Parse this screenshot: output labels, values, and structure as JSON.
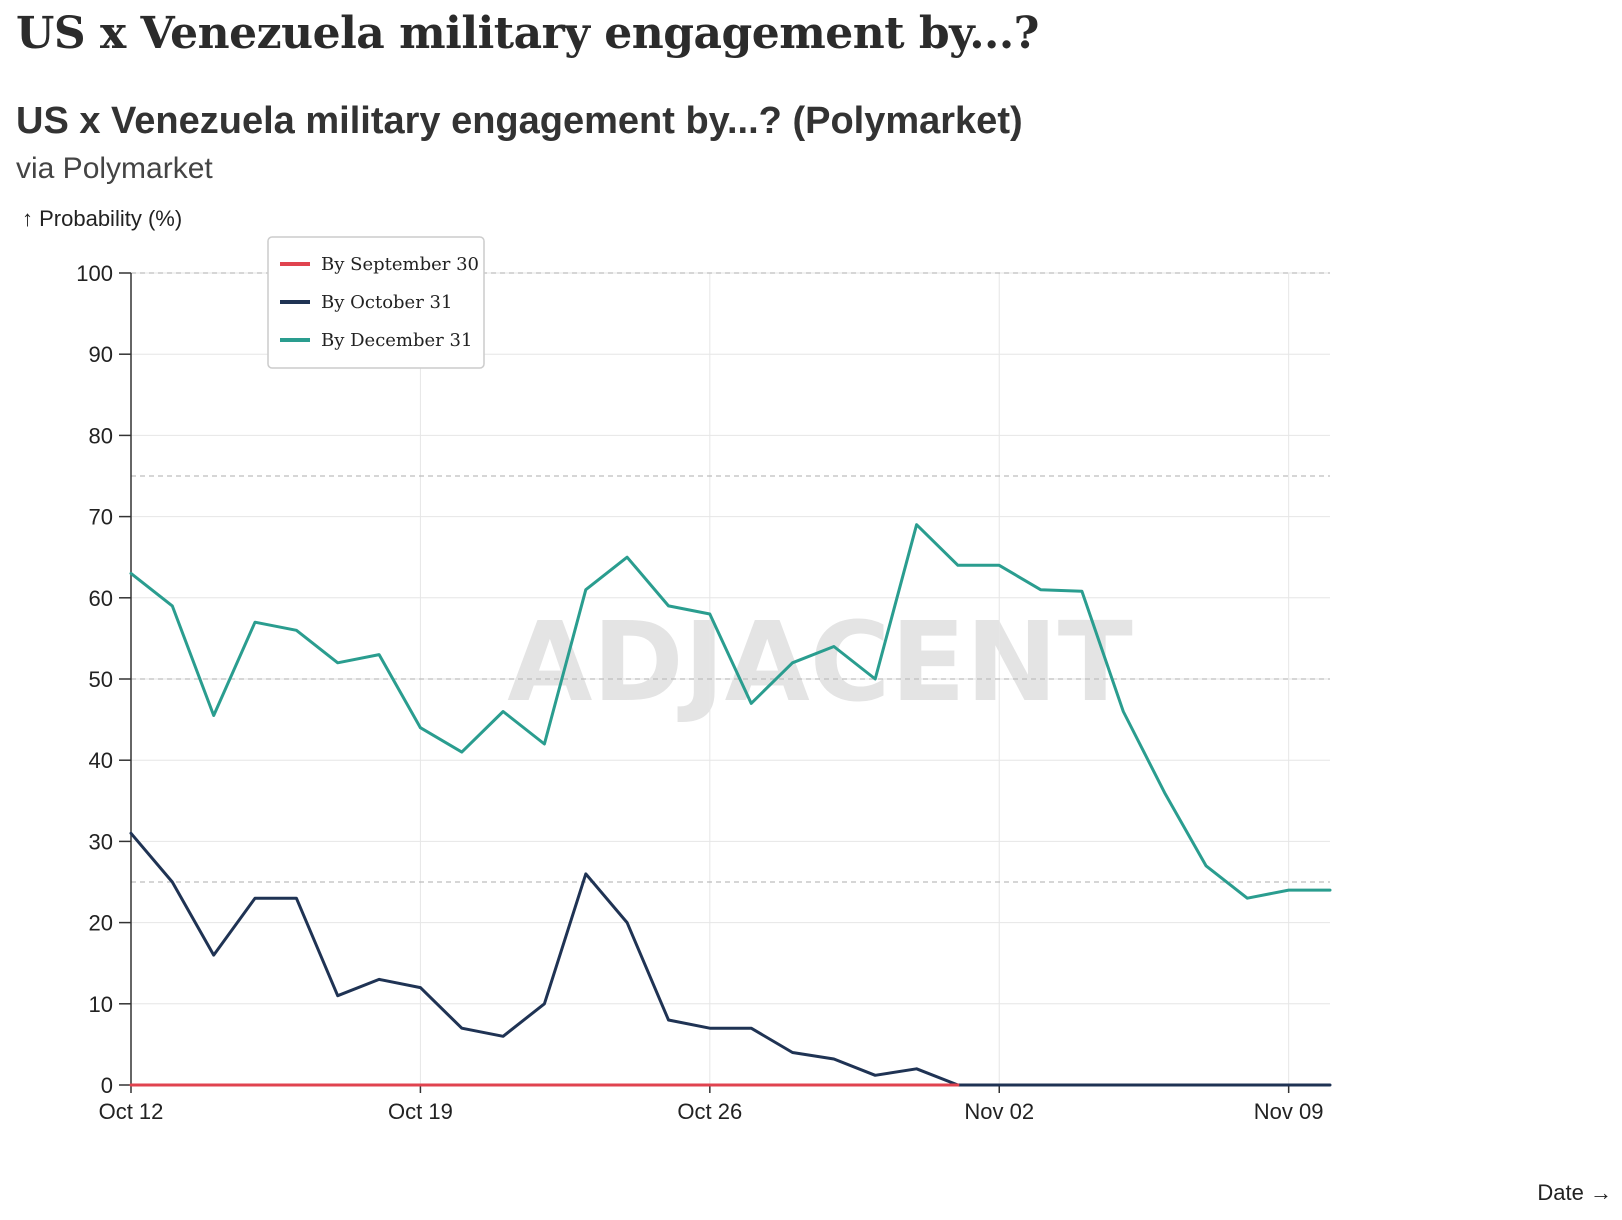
{
  "page": {
    "title": "US x Venezuela military engagement by...?"
  },
  "chart_data": {
    "type": "line",
    "title": "US x Venezuela military engagement by...? (Polymarket)",
    "subtitle": "via Polymarket",
    "ylabel": "↑ Probability (%)",
    "xlabel": "Date →",
    "watermark": "ADJACENT",
    "ylim": [
      0,
      100
    ],
    "yticks": [
      0,
      10,
      20,
      30,
      40,
      50,
      60,
      70,
      80,
      90,
      100
    ],
    "xlim": [
      "2025-10-12",
      "2025-11-10"
    ],
    "xticks": [
      {
        "date": "2025-10-12",
        "label": "Oct 12"
      },
      {
        "date": "2025-10-19",
        "label": "Oct 19"
      },
      {
        "date": "2025-10-26",
        "label": "Oct 26"
      },
      {
        "date": "2025-11-02",
        "label": "Nov 02"
      },
      {
        "date": "2025-11-09",
        "label": "Nov 09"
      }
    ],
    "reference_lines": [
      25,
      50,
      75,
      100
    ],
    "grid": true,
    "legend_position": "top-left",
    "x": [
      "2025-10-12",
      "2025-10-13",
      "2025-10-14",
      "2025-10-15",
      "2025-10-16",
      "2025-10-17",
      "2025-10-18",
      "2025-10-19",
      "2025-10-20",
      "2025-10-21",
      "2025-10-22",
      "2025-10-23",
      "2025-10-24",
      "2025-10-25",
      "2025-10-26",
      "2025-10-27",
      "2025-10-28",
      "2025-10-29",
      "2025-10-30",
      "2025-10-31",
      "2025-11-01",
      "2025-11-02",
      "2025-11-03",
      "2025-11-04",
      "2025-11-05",
      "2025-11-06",
      "2025-11-07",
      "2025-11-08",
      "2025-11-09",
      "2025-11-10"
    ],
    "series": [
      {
        "name": "By September 30",
        "color": "#e0434f",
        "values": [
          0,
          0,
          0,
          0,
          0,
          0,
          0,
          0,
          0,
          0,
          0,
          0,
          0,
          0,
          0,
          0,
          0,
          0,
          0,
          0,
          0,
          null,
          null,
          null,
          null,
          null,
          null,
          null,
          null,
          null
        ]
      },
      {
        "name": "By October 31",
        "color": "#1f3354",
        "values": [
          31,
          25,
          16,
          23,
          23,
          11,
          13,
          12,
          7,
          6,
          10,
          26,
          20,
          8,
          7,
          7,
          4,
          3.2,
          1.2,
          2,
          0,
          0,
          0,
          0,
          0,
          0,
          0,
          0,
          0,
          0
        ]
      },
      {
        "name": "By December 31",
        "color": "#2a9d8f",
        "values": [
          63,
          59,
          45.5,
          57,
          56,
          52,
          53,
          44,
          41,
          46,
          42,
          61,
          65,
          59,
          58,
          47,
          52,
          54,
          50,
          69,
          64,
          64,
          61,
          60.8,
          46,
          36,
          27,
          23,
          24,
          24
        ]
      }
    ]
  }
}
